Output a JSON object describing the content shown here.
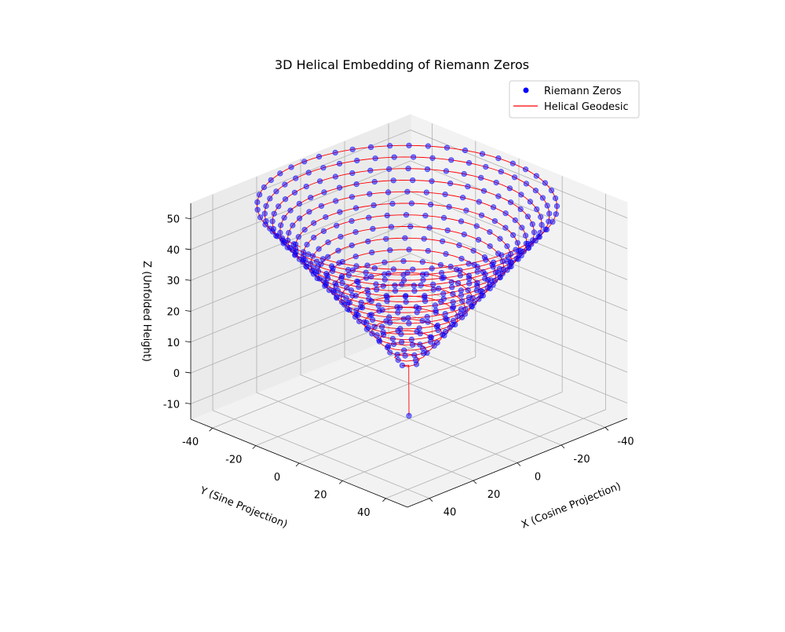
{
  "chart_data": {
    "type": "scatter",
    "subtype": "3d-helix",
    "title": "3D Helical Embedding of Riemann Zeros",
    "xlabel": "X (Cosine Projection)",
    "ylabel": "Y (Sine Projection)",
    "zlabel": "Z (Unfolded Height)",
    "xlim": [
      -50,
      50
    ],
    "ylim": [
      -50,
      50
    ],
    "zlim": [
      -15,
      55
    ],
    "x_ticks": [
      -40,
      -20,
      0,
      20,
      40
    ],
    "y_ticks": [
      -40,
      -20,
      0,
      20,
      40
    ],
    "z_ticks": [
      -10,
      0,
      10,
      20,
      30,
      40,
      50
    ],
    "view": {
      "elevation_deg": 20,
      "azimuth_deg": 45
    },
    "grid": true,
    "legend_position": "upper-right",
    "series": [
      {
        "name": "Riemann Zeros",
        "kind": "scatter",
        "color": "#0000ff",
        "marker": "circle"
      },
      {
        "name": "Helical Geodesic",
        "kind": "line",
        "color": "#ff0000"
      }
    ],
    "helix_model": {
      "point_count": 1000,
      "radius_per_unit_height": 0.9,
      "first_point": {
        "x": 0,
        "y": 0,
        "z": -14
      },
      "cone_apex_z": 0,
      "top_z": 55,
      "turns": 20
    }
  }
}
